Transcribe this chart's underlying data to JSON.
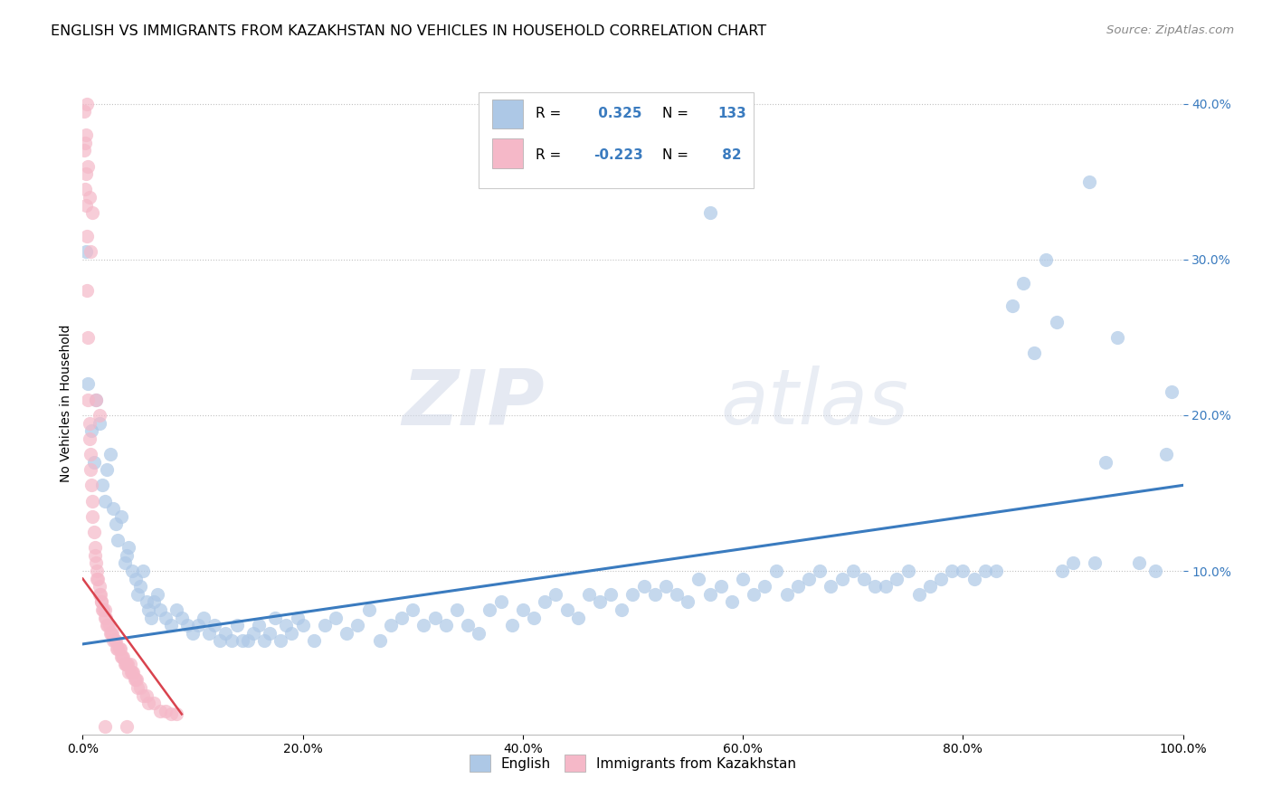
{
  "title": "ENGLISH VS IMMIGRANTS FROM KAZAKHSTAN NO VEHICLES IN HOUSEHOLD CORRELATION CHART",
  "source": "Source: ZipAtlas.com",
  "ylabel": "No Vehicles in Household",
  "xlim": [
    0,
    1.0
  ],
  "ylim": [
    -0.005,
    0.42
  ],
  "legend_labels": [
    "English",
    "Immigrants from Kazakhstan"
  ],
  "r_english": 0.325,
  "n_english": 133,
  "r_kazakh": -0.223,
  "n_kazakh": 82,
  "blue_color": "#adc8e6",
  "pink_color": "#f5b8c8",
  "blue_line_color": "#3a7bbf",
  "pink_line_color": "#d9434e",
  "watermark_zip": "ZIP",
  "watermark_atlas": "atlas",
  "title_fontsize": 11.5,
  "axis_label_fontsize": 10,
  "tick_fontsize": 10,
  "english_scatter": [
    [
      0.003,
      0.305
    ],
    [
      0.005,
      0.22
    ],
    [
      0.008,
      0.19
    ],
    [
      0.01,
      0.17
    ],
    [
      0.012,
      0.21
    ],
    [
      0.015,
      0.195
    ],
    [
      0.018,
      0.155
    ],
    [
      0.02,
      0.145
    ],
    [
      0.022,
      0.165
    ],
    [
      0.025,
      0.175
    ],
    [
      0.028,
      0.14
    ],
    [
      0.03,
      0.13
    ],
    [
      0.032,
      0.12
    ],
    [
      0.035,
      0.135
    ],
    [
      0.038,
      0.105
    ],
    [
      0.04,
      0.11
    ],
    [
      0.042,
      0.115
    ],
    [
      0.045,
      0.1
    ],
    [
      0.048,
      0.095
    ],
    [
      0.05,
      0.085
    ],
    [
      0.052,
      0.09
    ],
    [
      0.055,
      0.1
    ],
    [
      0.058,
      0.08
    ],
    [
      0.06,
      0.075
    ],
    [
      0.062,
      0.07
    ],
    [
      0.065,
      0.08
    ],
    [
      0.068,
      0.085
    ],
    [
      0.07,
      0.075
    ],
    [
      0.075,
      0.07
    ],
    [
      0.08,
      0.065
    ],
    [
      0.085,
      0.075
    ],
    [
      0.09,
      0.07
    ],
    [
      0.095,
      0.065
    ],
    [
      0.1,
      0.06
    ],
    [
      0.105,
      0.065
    ],
    [
      0.11,
      0.07
    ],
    [
      0.115,
      0.06
    ],
    [
      0.12,
      0.065
    ],
    [
      0.125,
      0.055
    ],
    [
      0.13,
      0.06
    ],
    [
      0.135,
      0.055
    ],
    [
      0.14,
      0.065
    ],
    [
      0.145,
      0.055
    ],
    [
      0.15,
      0.055
    ],
    [
      0.155,
      0.06
    ],
    [
      0.16,
      0.065
    ],
    [
      0.165,
      0.055
    ],
    [
      0.17,
      0.06
    ],
    [
      0.175,
      0.07
    ],
    [
      0.18,
      0.055
    ],
    [
      0.185,
      0.065
    ],
    [
      0.19,
      0.06
    ],
    [
      0.195,
      0.07
    ],
    [
      0.2,
      0.065
    ],
    [
      0.21,
      0.055
    ],
    [
      0.22,
      0.065
    ],
    [
      0.23,
      0.07
    ],
    [
      0.24,
      0.06
    ],
    [
      0.25,
      0.065
    ],
    [
      0.26,
      0.075
    ],
    [
      0.27,
      0.055
    ],
    [
      0.28,
      0.065
    ],
    [
      0.29,
      0.07
    ],
    [
      0.3,
      0.075
    ],
    [
      0.31,
      0.065
    ],
    [
      0.32,
      0.07
    ],
    [
      0.33,
      0.065
    ],
    [
      0.34,
      0.075
    ],
    [
      0.35,
      0.065
    ],
    [
      0.36,
      0.06
    ],
    [
      0.37,
      0.075
    ],
    [
      0.38,
      0.08
    ],
    [
      0.39,
      0.065
    ],
    [
      0.4,
      0.075
    ],
    [
      0.41,
      0.07
    ],
    [
      0.42,
      0.08
    ],
    [
      0.43,
      0.085
    ],
    [
      0.44,
      0.075
    ],
    [
      0.45,
      0.07
    ],
    [
      0.46,
      0.085
    ],
    [
      0.47,
      0.08
    ],
    [
      0.48,
      0.085
    ],
    [
      0.49,
      0.075
    ],
    [
      0.5,
      0.085
    ],
    [
      0.51,
      0.09
    ],
    [
      0.52,
      0.085
    ],
    [
      0.53,
      0.09
    ],
    [
      0.54,
      0.085
    ],
    [
      0.55,
      0.08
    ],
    [
      0.56,
      0.095
    ],
    [
      0.57,
      0.085
    ],
    [
      0.58,
      0.09
    ],
    [
      0.59,
      0.08
    ],
    [
      0.6,
      0.095
    ],
    [
      0.61,
      0.085
    ],
    [
      0.62,
      0.09
    ],
    [
      0.63,
      0.1
    ],
    [
      0.64,
      0.085
    ],
    [
      0.65,
      0.09
    ],
    [
      0.57,
      0.33
    ],
    [
      0.66,
      0.095
    ],
    [
      0.67,
      0.1
    ],
    [
      0.68,
      0.09
    ],
    [
      0.69,
      0.095
    ],
    [
      0.7,
      0.1
    ],
    [
      0.71,
      0.095
    ],
    [
      0.72,
      0.09
    ],
    [
      0.73,
      0.09
    ],
    [
      0.74,
      0.095
    ],
    [
      0.75,
      0.1
    ],
    [
      0.76,
      0.085
    ],
    [
      0.77,
      0.09
    ],
    [
      0.78,
      0.095
    ],
    [
      0.79,
      0.1
    ],
    [
      0.8,
      0.1
    ],
    [
      0.81,
      0.095
    ],
    [
      0.82,
      0.1
    ],
    [
      0.83,
      0.1
    ],
    [
      0.845,
      0.27
    ],
    [
      0.855,
      0.285
    ],
    [
      0.865,
      0.24
    ],
    [
      0.875,
      0.3
    ],
    [
      0.885,
      0.26
    ],
    [
      0.89,
      0.1
    ],
    [
      0.9,
      0.105
    ],
    [
      0.915,
      0.35
    ],
    [
      0.92,
      0.105
    ],
    [
      0.93,
      0.17
    ],
    [
      0.94,
      0.25
    ],
    [
      0.96,
      0.105
    ],
    [
      0.975,
      0.1
    ],
    [
      0.985,
      0.175
    ],
    [
      0.99,
      0.215
    ]
  ],
  "kazakh_scatter": [
    [
      0.002,
      0.375
    ],
    [
      0.003,
      0.355
    ],
    [
      0.003,
      0.335
    ],
    [
      0.004,
      0.315
    ],
    [
      0.004,
      0.28
    ],
    [
      0.005,
      0.25
    ],
    [
      0.005,
      0.21
    ],
    [
      0.006,
      0.195
    ],
    [
      0.006,
      0.185
    ],
    [
      0.007,
      0.175
    ],
    [
      0.007,
      0.165
    ],
    [
      0.008,
      0.155
    ],
    [
      0.009,
      0.145
    ],
    [
      0.009,
      0.135
    ],
    [
      0.01,
      0.125
    ],
    [
      0.011,
      0.115
    ],
    [
      0.011,
      0.11
    ],
    [
      0.012,
      0.105
    ],
    [
      0.013,
      0.1
    ],
    [
      0.013,
      0.095
    ],
    [
      0.014,
      0.095
    ],
    [
      0.015,
      0.09
    ],
    [
      0.015,
      0.085
    ],
    [
      0.016,
      0.085
    ],
    [
      0.017,
      0.08
    ],
    [
      0.017,
      0.08
    ],
    [
      0.018,
      0.075
    ],
    [
      0.019,
      0.075
    ],
    [
      0.02,
      0.07
    ],
    [
      0.02,
      0.075
    ],
    [
      0.021,
      0.07
    ],
    [
      0.022,
      0.065
    ],
    [
      0.023,
      0.065
    ],
    [
      0.024,
      0.065
    ],
    [
      0.025,
      0.06
    ],
    [
      0.026,
      0.06
    ],
    [
      0.027,
      0.06
    ],
    [
      0.028,
      0.055
    ],
    [
      0.029,
      0.055
    ],
    [
      0.03,
      0.055
    ],
    [
      0.031,
      0.05
    ],
    [
      0.032,
      0.05
    ],
    [
      0.033,
      0.05
    ],
    [
      0.034,
      0.05
    ],
    [
      0.035,
      0.045
    ],
    [
      0.036,
      0.045
    ],
    [
      0.037,
      0.045
    ],
    [
      0.038,
      0.04
    ],
    [
      0.039,
      0.04
    ],
    [
      0.04,
      0.04
    ],
    [
      0.041,
      0.04
    ],
    [
      0.042,
      0.035
    ],
    [
      0.043,
      0.04
    ],
    [
      0.044,
      0.035
    ],
    [
      0.045,
      0.035
    ],
    [
      0.046,
      0.035
    ],
    [
      0.047,
      0.03
    ],
    [
      0.048,
      0.03
    ],
    [
      0.049,
      0.03
    ],
    [
      0.05,
      0.025
    ],
    [
      0.052,
      0.025
    ],
    [
      0.055,
      0.02
    ],
    [
      0.058,
      0.02
    ],
    [
      0.06,
      0.015
    ],
    [
      0.065,
      0.015
    ],
    [
      0.07,
      0.01
    ],
    [
      0.075,
      0.01
    ],
    [
      0.08,
      0.008
    ],
    [
      0.085,
      0.008
    ],
    [
      0.001,
      0.395
    ],
    [
      0.001,
      0.37
    ],
    [
      0.002,
      0.345
    ],
    [
      0.003,
      0.38
    ],
    [
      0.004,
      0.4
    ],
    [
      0.005,
      0.36
    ],
    [
      0.006,
      0.34
    ],
    [
      0.007,
      0.305
    ],
    [
      0.009,
      0.33
    ],
    [
      0.012,
      0.21
    ],
    [
      0.015,
      0.2
    ],
    [
      0.02,
      0.0
    ],
    [
      0.04,
      0.0
    ]
  ],
  "blue_line": [
    [
      0.0,
      0.053
    ],
    [
      1.0,
      0.155
    ]
  ],
  "pink_line": [
    [
      0.0,
      0.095
    ],
    [
      0.09,
      0.008
    ]
  ]
}
